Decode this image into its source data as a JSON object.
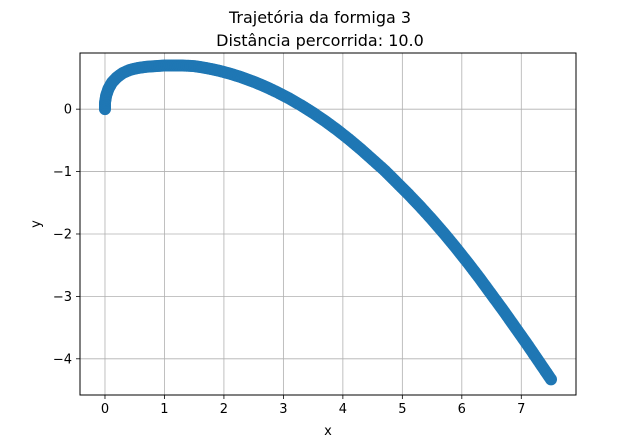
{
  "chart_data": {
    "type": "scatter",
    "title": "Trajetória da formiga 3",
    "subtitle": "Distância percorrida: 10.0",
    "xlabel": "x",
    "ylabel": "y",
    "xlim": [
      -0.42,
      7.92
    ],
    "ylim": [
      -4.58,
      0.9
    ],
    "xticks": [
      0,
      1,
      2,
      3,
      4,
      5,
      6,
      7
    ],
    "yticks": [
      -4,
      -3,
      -2,
      -1,
      0
    ],
    "grid": true,
    "colors": {
      "points": "#1f77b4",
      "grid": "#b0b0b0",
      "axes": "#000000"
    },
    "series": [
      {
        "x": [
          0.0,
          0.0,
          0.02,
          0.06,
          0.12,
          0.2,
          0.3,
          0.42,
          0.55,
          0.7,
          0.85,
          1.0,
          1.15,
          1.3,
          1.5,
          1.7,
          1.9,
          2.1,
          2.3,
          2.5,
          2.7,
          2.9,
          3.1,
          3.3,
          3.5,
          3.7,
          3.9,
          4.1,
          4.3,
          4.5,
          4.7,
          4.9,
          5.1,
          5.3,
          5.5,
          5.7,
          5.9,
          6.1,
          6.3,
          6.5,
          6.7,
          6.9,
          7.1,
          7.3,
          7.5
        ],
        "y": [
          0.0,
          0.1,
          0.22,
          0.33,
          0.43,
          0.51,
          0.58,
          0.63,
          0.66,
          0.68,
          0.69,
          0.7,
          0.7,
          0.7,
          0.69,
          0.66,
          0.62,
          0.57,
          0.51,
          0.44,
          0.36,
          0.27,
          0.17,
          0.06,
          -0.06,
          -0.19,
          -0.33,
          -0.48,
          -0.64,
          -0.81,
          -0.98,
          -1.17,
          -1.36,
          -1.56,
          -1.77,
          -1.99,
          -2.22,
          -2.46,
          -2.71,
          -2.97,
          -3.23,
          -3.5,
          -3.77,
          -4.05,
          -4.33
        ]
      }
    ]
  }
}
